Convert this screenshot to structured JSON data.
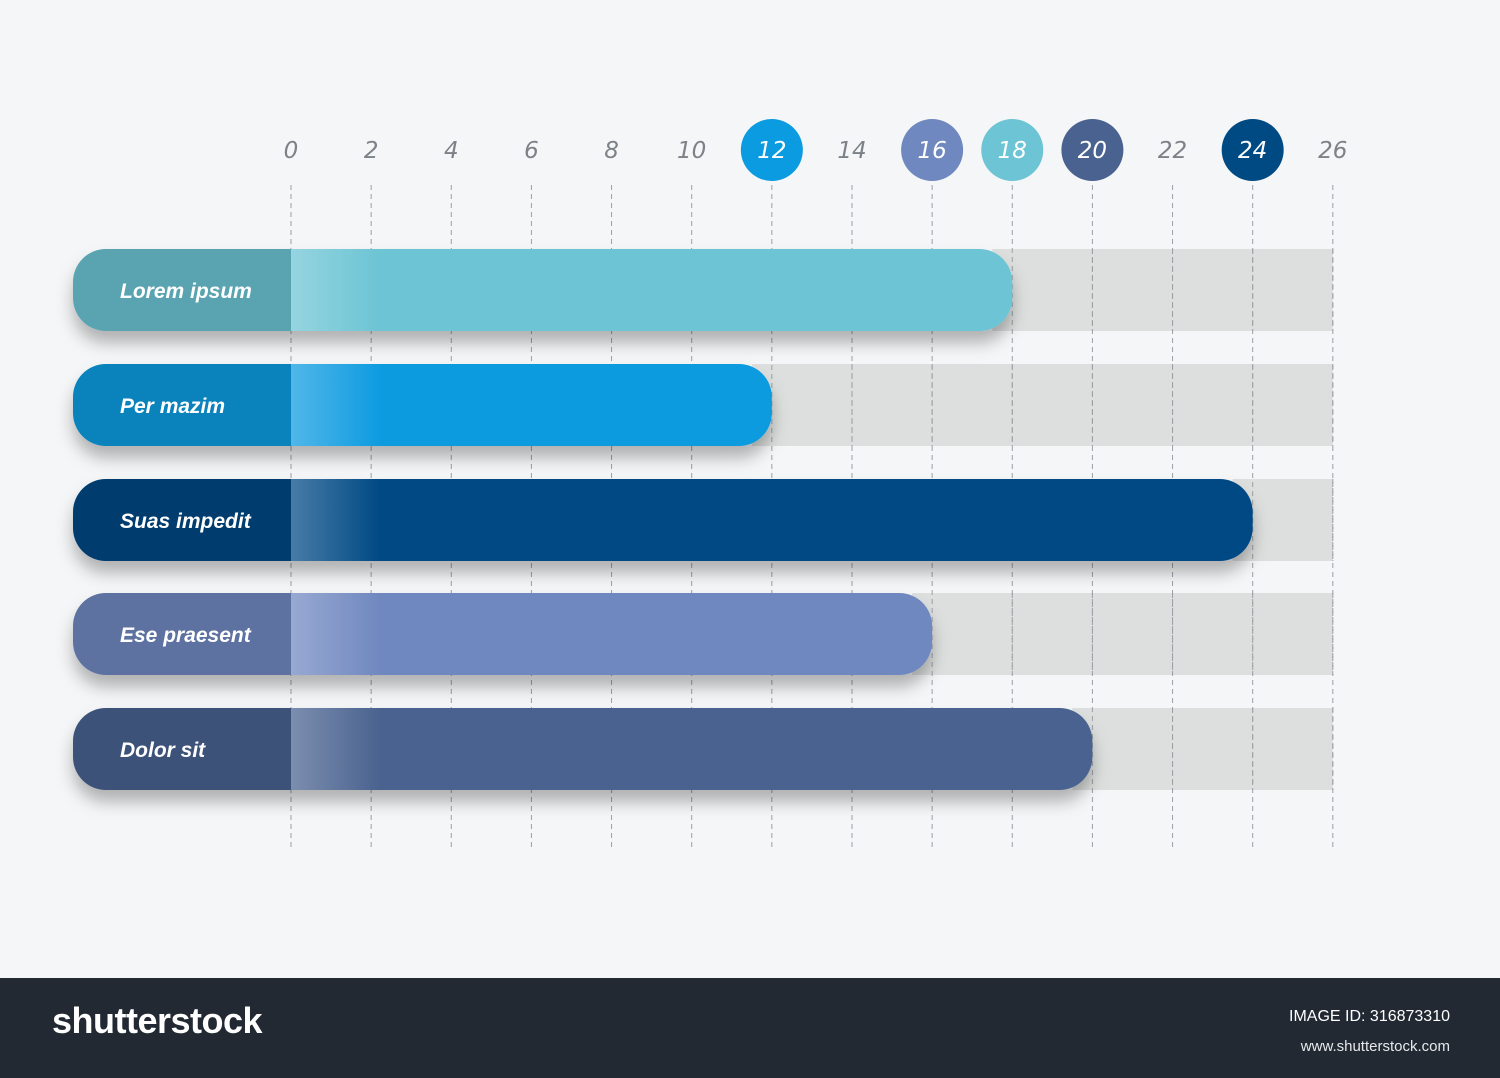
{
  "chart_data": {
    "type": "bar",
    "orientation": "horizontal",
    "title": "",
    "xlabel": "",
    "ylabel": "",
    "xlim": [
      0,
      26
    ],
    "x_ticks": [
      0,
      2,
      4,
      6,
      8,
      10,
      12,
      14,
      16,
      18,
      20,
      22,
      24,
      26
    ],
    "highlighted_ticks": [
      {
        "value": 12,
        "color": "#0a9be0"
      },
      {
        "value": 16,
        "color": "#7088c0"
      },
      {
        "value": 18,
        "color": "#6cc4d4"
      },
      {
        "value": 20,
        "color": "#4a628f"
      },
      {
        "value": 24,
        "color": "#004a84"
      }
    ],
    "grid": "vertical dashed",
    "categories": [
      "Lorem ipsum",
      "Per mazim",
      "Suas impedit",
      "Ese praesent",
      "Dolor sit"
    ],
    "values": [
      18,
      12,
      24,
      16,
      20
    ],
    "colors": [
      "#6cc4d4",
      "#0a9be0",
      "#004a84",
      "#7088c0",
      "#4a628f"
    ],
    "track_color": "#dcdfdd"
  },
  "footer": {
    "brand": "shutterstock",
    "image_id": "IMAGE ID: 316873310",
    "url": "www.shutterstock.com"
  }
}
